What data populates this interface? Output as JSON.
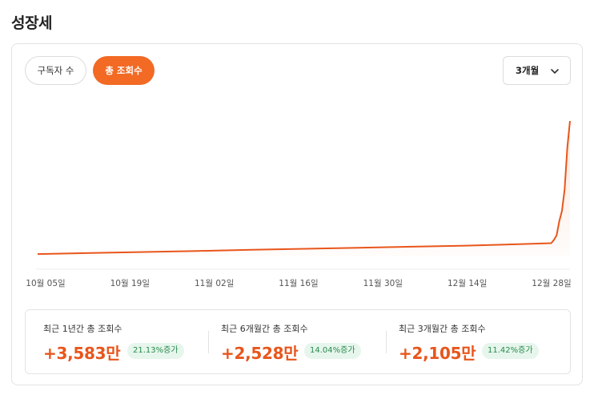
{
  "section": {
    "title": "성장세"
  },
  "tabs": [
    {
      "label": "구독자 수",
      "active": false
    },
    {
      "label": "총 조회수",
      "active": true
    }
  ],
  "period_select": {
    "value": "3개월",
    "icon": "chevron-down-icon"
  },
  "colors": {
    "accent": "#f26a24",
    "line": "#e8561c",
    "badge_bg": "#e6f6ec",
    "badge_text": "#2a8a4e"
  },
  "chart_data": {
    "type": "area",
    "x_labels": [
      "10월 05일",
      "10월 19일",
      "11월 02일",
      "11월 16일",
      "11월 30일",
      "12월 14일",
      "12월 28일"
    ],
    "points": [
      [
        0,
        2
      ],
      [
        20,
        5
      ],
      [
        40,
        8
      ],
      [
        60,
        11
      ],
      [
        80,
        14
      ],
      [
        100,
        17
      ],
      [
        120,
        20
      ],
      [
        140,
        23
      ],
      [
        160,
        26
      ],
      [
        180,
        30
      ],
      [
        192,
        33
      ],
      [
        193,
        42
      ],
      [
        194,
        55
      ],
      [
        195,
        95
      ],
      [
        196,
        125
      ],
      [
        197,
        185
      ],
      [
        198,
        305
      ],
      [
        199,
        380
      ]
    ],
    "grid": false,
    "legend": "none"
  },
  "summary": [
    {
      "label": "최근 1년간 총 조회수",
      "value": "+3,583만",
      "change": "21.13%증가"
    },
    {
      "label": "최근 6개월간 총 조회수",
      "value": "+2,528만",
      "change": "14.04%증가"
    },
    {
      "label": "최근 3개월간 총 조회수",
      "value": "+2,105만",
      "change": "11.42%증가"
    }
  ]
}
